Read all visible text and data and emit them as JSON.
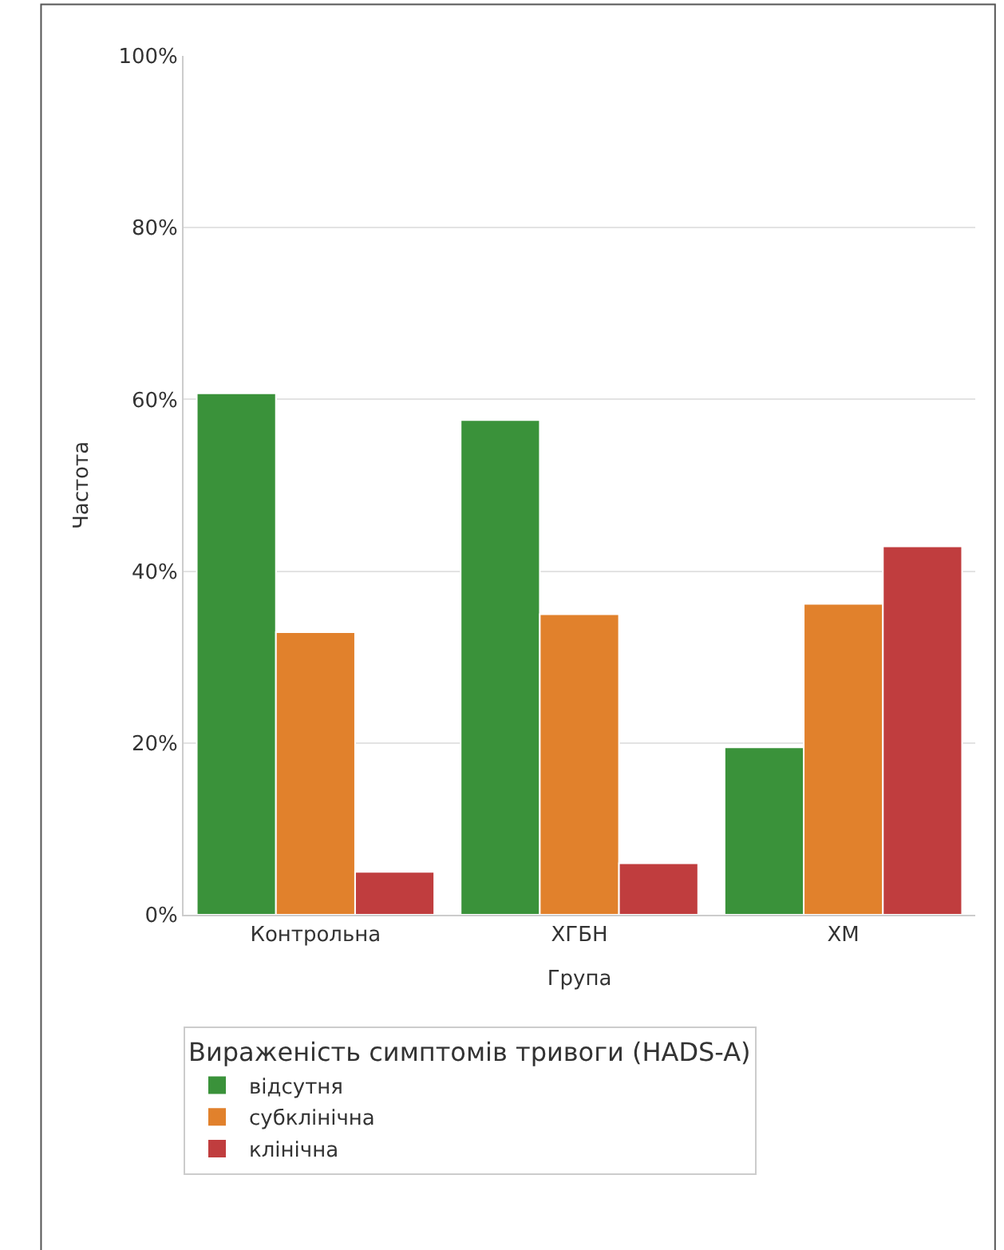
{
  "chart_data": {
    "type": "bar",
    "xlabel": "Група",
    "ylabel": "Частота",
    "legend_title": "Вираженість симптомів тривоги (HADS-A)",
    "categories": [
      "Контрольна",
      "ХГБН",
      "ХМ"
    ],
    "series": [
      {
        "name": "відсутня",
        "color": "#3a923a",
        "values": [
          60.7,
          57.6,
          19.5
        ]
      },
      {
        "name": "субклінічна",
        "color": "#e1812c",
        "values": [
          32.9,
          35.0,
          36.2
        ]
      },
      {
        "name": "клінічна",
        "color": "#c03d3e",
        "values": [
          5.0,
          6.0,
          42.9
        ]
      }
    ],
    "ylim": [
      0,
      100
    ],
    "yticks": [
      {
        "value": 0,
        "label": "0%"
      },
      {
        "value": 20,
        "label": "20%"
      },
      {
        "value": 40,
        "label": "40%"
      },
      {
        "value": 60,
        "label": "60%"
      },
      {
        "value": 80,
        "label": "80%"
      },
      {
        "value": 100,
        "label": "100%"
      }
    ],
    "grid": "y",
    "legend": "bottom"
  }
}
